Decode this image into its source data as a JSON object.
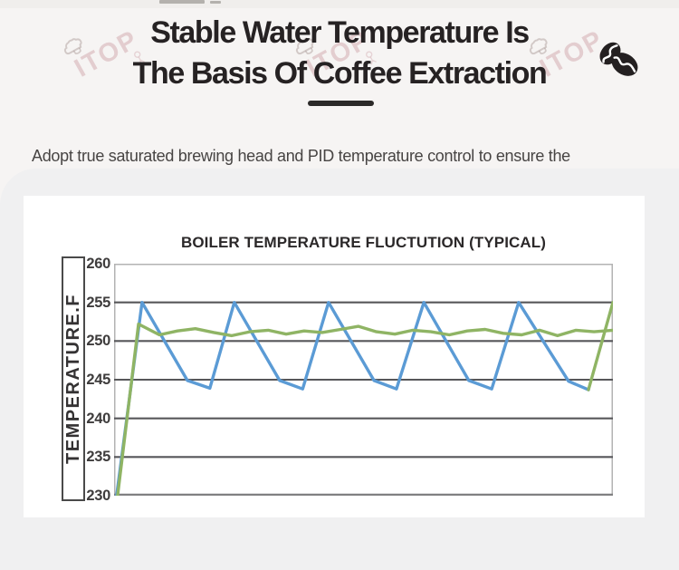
{
  "page": {
    "title_line1": "Stable Water Temperature Is",
    "title_line2": "The Basis Of Coffee Extraction",
    "description": "Adopt true saturated brewing head and PID temperature control to ensure the extraction temperature.",
    "watermark_text": "ITOP",
    "logo_icon": "coffee-beans-icon"
  },
  "colors": {
    "title_text": "#262223",
    "underline_bar": "#2b2928",
    "body_text": "#474443",
    "section_bg": "#f0f0f1",
    "card_bg": "#ffffff",
    "gridline": "#57575a",
    "plot_border": "#b3b3b3",
    "blue_line": "#5b9bd5",
    "green_line": "#8fb464",
    "watermark_pink": "#c58e96",
    "logo_dark": "#242021"
  },
  "chart_data": {
    "type": "line",
    "title": "BOILER TEMPERATURE FLUCTUTION (TYPICAL)",
    "xlabel": "",
    "ylabel": "TEMPERATURE.F",
    "ylim": [
      230,
      260
    ],
    "yticks": [
      260,
      255,
      250,
      245,
      240,
      235,
      230
    ],
    "xlim": [
      0,
      100
    ],
    "x_tick_labels": [],
    "grid": "horizontal",
    "legend_position": "none",
    "series": [
      {
        "id": "fluctuating_boiler_temperature",
        "color": "#5b9bd5",
        "points": [
          [
            0.5,
            230
          ],
          [
            5.6,
            255
          ],
          [
            14.7,
            244.9
          ],
          [
            19.2,
            243.9
          ],
          [
            24.1,
            255
          ],
          [
            33.2,
            244.9
          ],
          [
            37.8,
            243.8
          ],
          [
            43.0,
            255
          ],
          [
            52.1,
            244.9
          ],
          [
            56.6,
            243.8
          ],
          [
            62.1,
            255
          ],
          [
            71.1,
            244.9
          ],
          [
            75.7,
            243.8
          ],
          [
            81.1,
            255
          ],
          [
            91.1,
            244.8
          ],
          [
            95.1,
            243.7
          ]
        ]
      },
      {
        "id": "stable_pid_temperature",
        "color": "#8fb464",
        "points": [
          [
            0.7,
            230
          ],
          [
            4.9,
            252.2
          ],
          [
            9.1,
            250.8
          ],
          [
            12.7,
            251.3
          ],
          [
            16.3,
            251.6
          ],
          [
            20.0,
            251.1
          ],
          [
            23.6,
            250.7
          ],
          [
            27.2,
            251.2
          ],
          [
            30.9,
            251.4
          ],
          [
            34.5,
            250.9
          ],
          [
            38.1,
            251.3
          ],
          [
            41.7,
            251.1
          ],
          [
            45.4,
            251.5
          ],
          [
            49.0,
            251.9
          ],
          [
            52.6,
            251.2
          ],
          [
            56.3,
            250.9
          ],
          [
            59.9,
            251.4
          ],
          [
            63.5,
            251.2
          ],
          [
            67.2,
            250.8
          ],
          [
            70.8,
            251.3
          ],
          [
            74.4,
            251.5
          ],
          [
            78.0,
            251.0
          ],
          [
            81.7,
            250.8
          ],
          [
            85.3,
            251.4
          ],
          [
            88.9,
            250.7
          ],
          [
            92.6,
            251.4
          ],
          [
            96.2,
            251.2
          ],
          [
            100,
            251.4
          ]
        ]
      },
      {
        "id": "stable_temperature_rise_segment",
        "color": "#8fb464",
        "points": [
          [
            95.1,
            243.7
          ],
          [
            100,
            255
          ]
        ]
      }
    ]
  }
}
